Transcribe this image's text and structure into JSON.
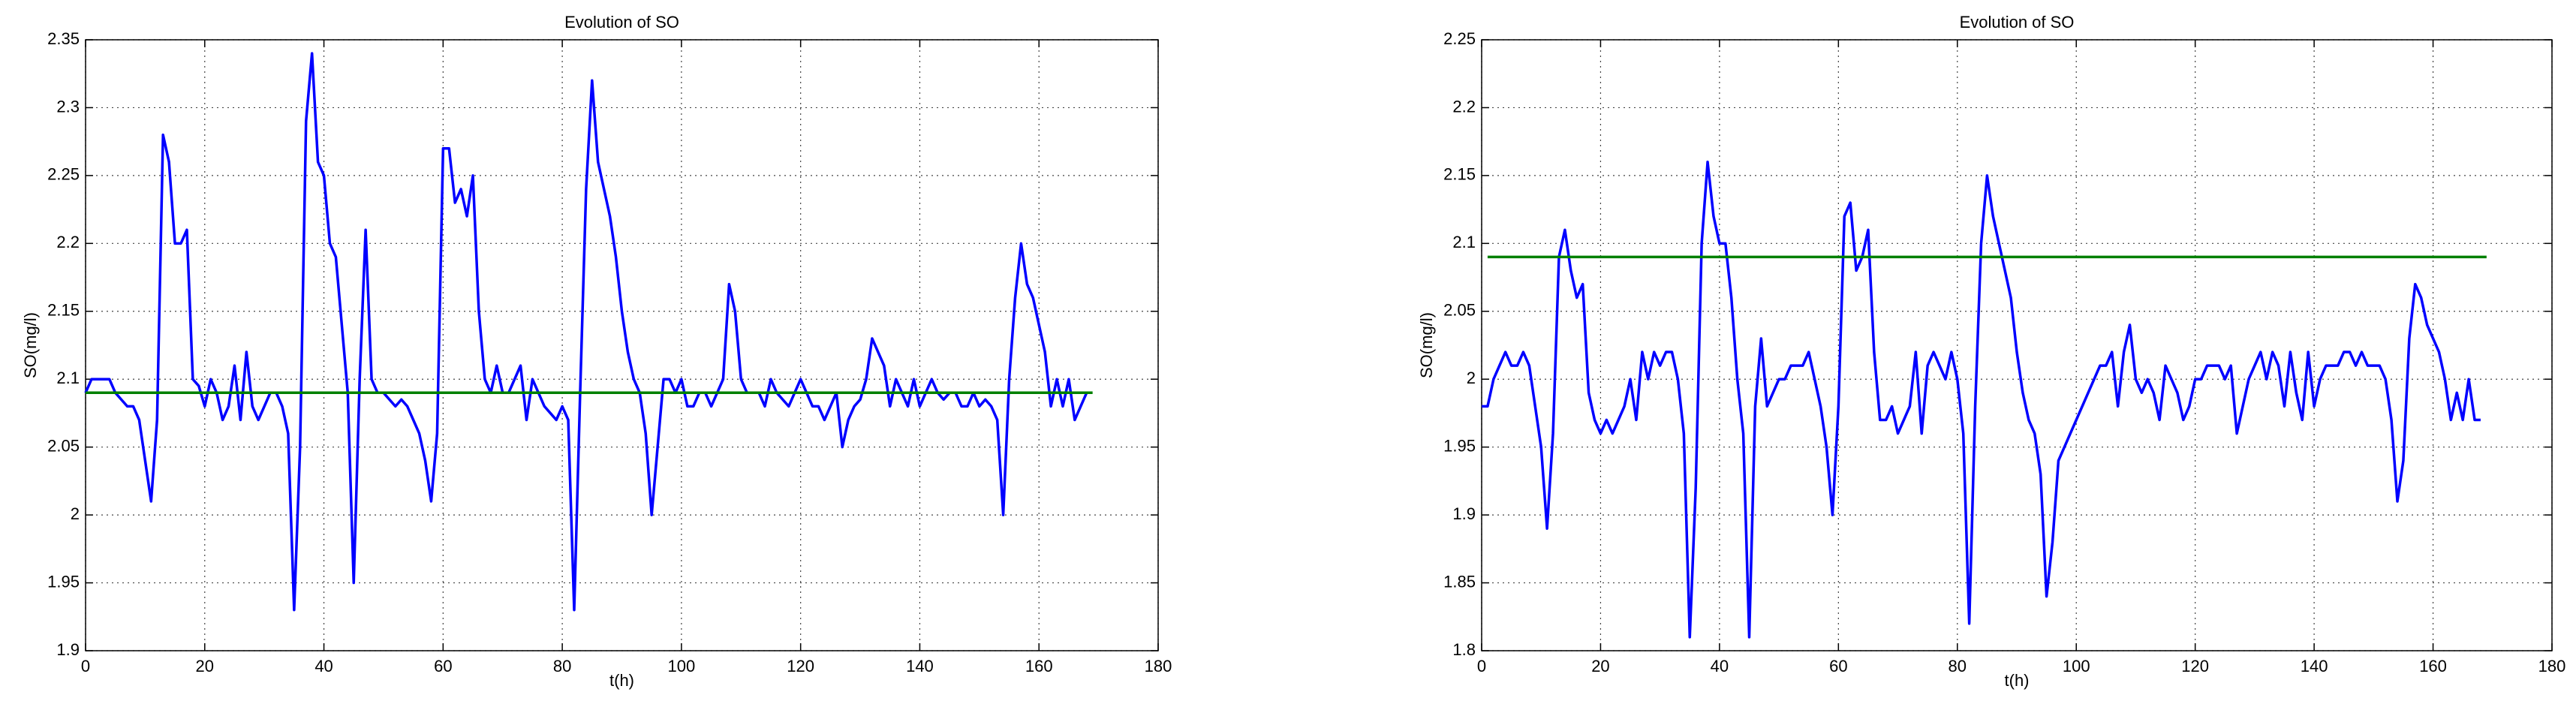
{
  "chart_data": [
    {
      "type": "line",
      "title": "Evolution of SO",
      "xlabel": "t(h)",
      "ylabel": "SO(mg/l)",
      "xlim": [
        0,
        180
      ],
      "xticks": [
        0,
        20,
        40,
        60,
        80,
        100,
        120,
        140,
        160,
        180
      ],
      "ylim": [
        1.9,
        2.35
      ],
      "yticks": [
        1.9,
        1.95,
        2,
        2.05,
        2.1,
        2.15,
        2.2,
        2.25,
        2.3,
        2.35
      ],
      "grid": true,
      "series": [
        {
          "color": "#0000ff",
          "x": [
            0,
            1,
            2,
            3,
            4,
            5,
            6,
            7,
            8,
            9,
            10,
            11,
            12,
            13,
            14,
            15,
            16,
            17,
            18,
            19,
            20,
            21,
            22,
            23,
            24,
            25,
            26,
            27,
            28,
            29,
            30,
            31,
            32,
            33,
            34,
            35,
            36,
            37,
            38,
            39,
            40,
            41,
            42,
            43,
            44,
            45,
            46,
            47,
            48,
            49,
            50,
            51,
            52,
            53,
            54,
            55,
            56,
            57,
            58,
            59,
            60,
            61,
            62,
            63,
            64,
            65,
            66,
            67,
            68,
            69,
            70,
            71,
            72,
            73,
            74,
            75,
            76,
            77,
            78,
            79,
            80,
            81,
            82,
            83,
            84,
            85,
            86,
            87,
            88,
            89,
            90,
            91,
            92,
            93,
            94,
            95,
            96,
            97,
            98,
            99,
            100,
            101,
            102,
            103,
            104,
            105,
            106,
            107,
            108,
            109,
            110,
            111,
            112,
            113,
            114,
            115,
            116,
            117,
            118,
            119,
            120,
            121,
            122,
            123,
            124,
            125,
            126,
            127,
            128,
            129,
            130,
            131,
            132,
            133,
            134,
            135,
            136,
            137,
            138,
            139,
            140,
            141,
            142,
            143,
            144,
            145,
            146,
            147,
            148,
            149,
            150,
            151,
            152,
            153,
            154,
            155,
            156,
            157,
            158,
            159,
            160,
            161,
            162,
            163,
            164,
            165,
            166,
            167,
            168
          ],
          "values": [
            2.09,
            2.1,
            2.1,
            2.1,
            2.1,
            2.09,
            2.085,
            2.08,
            2.08,
            2.07,
            2.04,
            2.01,
            2.07,
            2.28,
            2.26,
            2.2,
            2.2,
            2.21,
            2.1,
            2.095,
            2.08,
            2.1,
            2.09,
            2.07,
            2.08,
            2.11,
            2.07,
            2.12,
            2.08,
            2.07,
            2.08,
            2.09,
            2.09,
            2.08,
            2.06,
            1.93,
            2.05,
            2.29,
            2.34,
            2.26,
            2.25,
            2.2,
            2.19,
            2.14,
            2.09,
            1.95,
            2.1,
            2.21,
            2.1,
            2.09,
            2.09,
            2.085,
            2.08,
            2.085,
            2.08,
            2.07,
            2.06,
            2.04,
            2.01,
            2.06,
            2.27,
            2.27,
            2.23,
            2.24,
            2.22,
            2.25,
            2.15,
            2.1,
            2.09,
            2.11,
            2.09,
            2.09,
            2.1,
            2.11,
            2.07,
            2.1,
            2.09,
            2.08,
            2.075,
            2.07,
            2.08,
            2.07,
            1.93,
            2.09,
            2.24,
            2.32,
            2.26,
            2.24,
            2.22,
            2.19,
            2.15,
            2.12,
            2.1,
            2.09,
            2.06,
            2.0,
            2.05,
            2.1,
            2.1,
            2.09,
            2.1,
            2.08,
            2.08,
            2.09,
            2.09,
            2.08,
            2.09,
            2.1,
            2.17,
            2.15,
            2.1,
            2.09,
            2.09,
            2.09,
            2.08,
            2.1,
            2.09,
            2.085,
            2.08,
            2.09,
            2.1,
            2.09,
            2.08,
            2.08,
            2.07,
            2.08,
            2.09,
            2.05,
            2.07,
            2.08,
            2.085,
            2.1,
            2.13,
            2.12,
            2.11,
            2.08,
            2.1,
            2.09,
            2.08,
            2.1,
            2.08,
            2.09,
            2.1,
            2.09,
            2.085,
            2.09,
            2.09,
            2.08,
            2.08,
            2.09,
            2.08,
            2.085,
            2.08,
            2.07,
            2.0,
            2.1,
            2.16,
            2.2,
            2.17,
            2.16,
            2.14,
            2.12,
            2.08,
            2.1,
            2.08,
            2.1,
            2.07,
            2.08,
            2.09
          ]
        },
        {
          "color": "#008000",
          "x": [
            0,
            169
          ],
          "values": [
            2.09,
            2.09
          ]
        }
      ]
    },
    {
      "type": "line",
      "title": "Evolution of SO",
      "xlabel": "t(h)",
      "ylabel": "SO(mg/l)",
      "xlim": [
        0,
        180
      ],
      "xticks": [
        0,
        20,
        40,
        60,
        80,
        100,
        120,
        140,
        160,
        180
      ],
      "ylim": [
        1.8,
        2.25
      ],
      "yticks": [
        1.8,
        1.85,
        1.9,
        1.95,
        2,
        2.05,
        2.1,
        2.15,
        2.2,
        2.25
      ],
      "grid": true,
      "series": [
        {
          "color": "#0000ff",
          "x": [
            0,
            1,
            2,
            3,
            4,
            5,
            6,
            7,
            8,
            9,
            10,
            11,
            12,
            13,
            14,
            15,
            16,
            17,
            18,
            19,
            20,
            21,
            22,
            23,
            24,
            25,
            26,
            27,
            28,
            29,
            30,
            31,
            32,
            33,
            34,
            35,
            36,
            37,
            38,
            39,
            40,
            41,
            42,
            43,
            44,
            45,
            46,
            47,
            48,
            49,
            50,
            51,
            52,
            53,
            54,
            55,
            56,
            57,
            58,
            59,
            60,
            61,
            62,
            63,
            64,
            65,
            66,
            67,
            68,
            69,
            70,
            71,
            72,
            73,
            74,
            75,
            76,
            77,
            78,
            79,
            80,
            81,
            82,
            83,
            84,
            85,
            86,
            87,
            88,
            89,
            90,
            91,
            92,
            93,
            94,
            95,
            96,
            97,
            98,
            99,
            100,
            101,
            102,
            103,
            104,
            105,
            106,
            107,
            108,
            109,
            110,
            111,
            112,
            113,
            114,
            115,
            116,
            117,
            118,
            119,
            120,
            121,
            122,
            123,
            124,
            125,
            126,
            127,
            128,
            129,
            130,
            131,
            132,
            133,
            134,
            135,
            136,
            137,
            138,
            139,
            140,
            141,
            142,
            143,
            144,
            145,
            146,
            147,
            148,
            149,
            150,
            151,
            152,
            153,
            154,
            155,
            156,
            157,
            158,
            159,
            160,
            161,
            162,
            163,
            164,
            165,
            166,
            167,
            168
          ],
          "values": [
            1.98,
            1.98,
            2.0,
            2.01,
            2.02,
            2.01,
            2.01,
            2.02,
            2.01,
            1.98,
            1.95,
            1.89,
            1.96,
            2.09,
            2.11,
            2.08,
            2.06,
            2.07,
            1.99,
            1.97,
            1.96,
            1.97,
            1.96,
            1.97,
            1.98,
            2.0,
            1.97,
            2.02,
            2.0,
            2.02,
            2.01,
            2.02,
            2.02,
            2.0,
            1.96,
            1.81,
            1.92,
            2.1,
            2.16,
            2.12,
            2.1,
            2.1,
            2.06,
            2.0,
            1.96,
            1.81,
            1.98,
            2.03,
            1.98,
            1.99,
            2.0,
            2.0,
            2.01,
            2.01,
            2.01,
            2.02,
            2.0,
            1.98,
            1.95,
            1.9,
            1.98,
            2.12,
            2.13,
            2.08,
            2.09,
            2.11,
            2.02,
            1.97,
            1.97,
            1.98,
            1.96,
            1.97,
            1.98,
            2.02,
            1.96,
            2.01,
            2.02,
            2.01,
            2.0,
            2.02,
            2.0,
            1.96,
            1.82,
            1.98,
            2.1,
            2.15,
            2.12,
            2.1,
            2.08,
            2.06,
            2.02,
            1.99,
            1.97,
            1.96,
            1.93,
            1.84,
            1.88,
            1.94,
            1.95,
            1.96,
            1.97,
            1.98,
            1.99,
            2.0,
            2.01,
            2.01,
            2.02,
            1.98,
            2.02,
            2.04,
            2.0,
            1.99,
            2.0,
            1.99,
            1.97,
            2.01,
            2.0,
            1.99,
            1.97,
            1.98,
            2.0,
            2.0,
            2.01,
            2.01,
            2.01,
            2.0,
            2.01,
            1.96,
            1.98,
            2.0,
            2.01,
            2.02,
            2.0,
            2.02,
            2.01,
            1.98,
            2.02,
            1.99,
            1.97,
            2.02,
            1.98,
            2.0,
            2.01,
            2.01,
            2.01,
            2.02,
            2.02,
            2.01,
            2.02,
            2.01,
            2.01,
            2.01,
            2.0,
            1.97,
            1.91,
            1.94,
            2.03,
            2.07,
            2.06,
            2.04,
            2.03,
            2.02,
            2.0,
            1.97,
            1.99,
            1.97,
            2.0,
            1.97,
            1.97
          ]
        },
        {
          "color": "#008000",
          "x": [
            1,
            169
          ],
          "values": [
            2.09,
            2.09
          ]
        }
      ]
    }
  ]
}
